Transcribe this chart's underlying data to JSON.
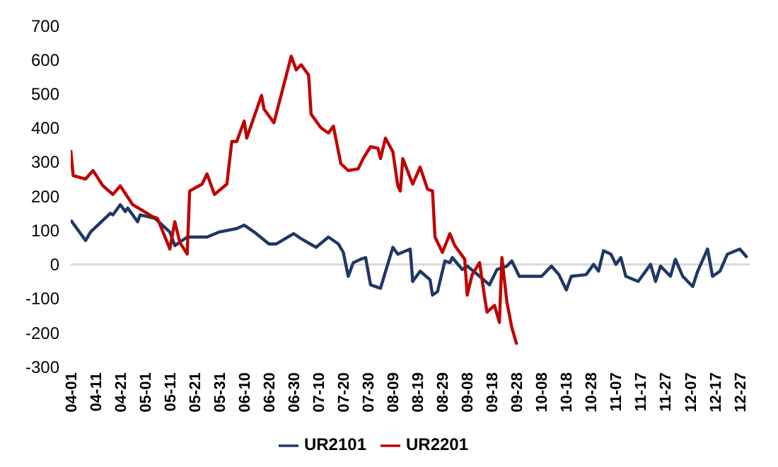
{
  "chart_data": {
    "type": "line",
    "legend": "bottom",
    "grid": false,
    "marker": "none",
    "line_style": "solid",
    "xlim": [
      "--04-01",
      "--12-31"
    ],
    "xticks": [
      {
        "value": "--04-01",
        "label": "04-01"
      },
      {
        "value": "--04-11",
        "label": "04-11"
      },
      {
        "value": "--04-21",
        "label": "04-21"
      },
      {
        "value": "--05-01",
        "label": "05-01"
      },
      {
        "value": "--05-11",
        "label": "05-11"
      },
      {
        "value": "--05-21",
        "label": "05-21"
      },
      {
        "value": "--05-31",
        "label": "05-31"
      },
      {
        "value": "--06-10",
        "label": "06-10"
      },
      {
        "value": "--06-20",
        "label": "06-20"
      },
      {
        "value": "--06-30",
        "label": "06-30"
      },
      {
        "value": "--07-10",
        "label": "07-10"
      },
      {
        "value": "--07-20",
        "label": "07-20"
      },
      {
        "value": "--07-30",
        "label": "07-30"
      },
      {
        "value": "--08-09",
        "label": "08-09"
      },
      {
        "value": "--08-19",
        "label": "08-19"
      },
      {
        "value": "--08-29",
        "label": "08-29"
      },
      {
        "value": "--09-08",
        "label": "09-08"
      },
      {
        "value": "--09-18",
        "label": "09-18"
      },
      {
        "value": "--09-28",
        "label": "09-28"
      },
      {
        "value": "--10-08",
        "label": "10-08"
      },
      {
        "value": "--10-18",
        "label": "10-18"
      },
      {
        "value": "--10-28",
        "label": "10-28"
      },
      {
        "value": "--11-07",
        "label": "11-07"
      },
      {
        "value": "--11-17",
        "label": "11-17"
      },
      {
        "value": "--11-27",
        "label": "11-27"
      },
      {
        "value": "--12-07",
        "label": "12-07"
      },
      {
        "value": "--12-17",
        "label": "12-17"
      },
      {
        "value": "--12-27",
        "label": "12-27"
      }
    ],
    "ylim": [
      -300,
      700
    ],
    "yticks": [
      -300,
      -200,
      -100,
      0,
      100,
      200,
      300,
      400,
      500,
      600,
      700
    ],
    "ref_lines": [
      {
        "axis": "y",
        "value": 0,
        "color": "#d9d9d9"
      }
    ],
    "series": [
      {
        "name": "UR2101",
        "color": "#1f3864",
        "x": [
          "--04-01",
          "--04-07",
          "--04-09",
          "--04-17",
          "--04-18",
          "--04-21",
          "--04-23",
          "--04-24",
          "--04-28",
          "--04-29",
          "--05-05",
          "--05-11",
          "--05-13",
          "--05-18",
          "--05-26",
          "--05-31",
          "--06-07",
          "--06-10",
          "--06-14",
          "--06-20",
          "--06-23",
          "--06-30",
          "--07-03",
          "--07-09",
          "--07-14",
          "--07-18",
          "--07-20",
          "--07-22",
          "--07-24",
          "--07-27",
          "--07-29",
          "--07-31",
          "--08-04",
          "--08-09",
          "--08-11",
          "--08-16",
          "--08-17",
          "--08-20",
          "--08-24",
          "--08-25",
          "--08-27",
          "--08-30",
          "--09-01",
          "--09-02",
          "--09-06",
          "--09-08",
          "--09-13",
          "--09-17",
          "--09-20",
          "--09-24",
          "--09-26",
          "--09-29",
          "--10-08",
          "--10-12",
          "--10-15",
          "--10-18",
          "--10-20",
          "--10-26",
          "--10-29",
          "--10-31",
          "--11-02",
          "--11-05",
          "--11-07",
          "--11-09",
          "--11-11",
          "--11-16",
          "--11-21",
          "--11-23",
          "--11-25",
          "--11-29",
          "--12-01",
          "--12-04",
          "--12-08",
          "--12-10",
          "--12-14",
          "--12-16",
          "--12-19",
          "--12-22",
          "--12-27",
          "--12-30"
        ],
        "values": [
          130,
          70,
          95,
          150,
          145,
          175,
          155,
          165,
          125,
          145,
          135,
          95,
          55,
          80,
          80,
          95,
          105,
          115,
          95,
          60,
          60,
          90,
          75,
          50,
          80,
          60,
          35,
          -35,
          5,
          15,
          20,
          -60,
          -70,
          50,
          30,
          45,
          -50,
          -20,
          -45,
          -90,
          -80,
          10,
          5,
          20,
          -15,
          -5,
          -35,
          -60,
          -15,
          -5,
          10,
          -35,
          -35,
          -5,
          -30,
          -75,
          -35,
          -30,
          0,
          -20,
          40,
          30,
          0,
          20,
          -35,
          -50,
          0,
          -50,
          -5,
          -35,
          15,
          -35,
          -65,
          -20,
          45,
          -35,
          -20,
          30,
          45,
          20
        ]
      },
      {
        "name": "UR2201",
        "color": "#c00000",
        "x": [
          "--04-01",
          "--04-02",
          "--04-07",
          "--04-10",
          "--04-14",
          "--04-18",
          "--04-21",
          "--04-26",
          "--05-04",
          "--05-06",
          "--05-11",
          "--05-13",
          "--05-15",
          "--05-18",
          "--05-19",
          "--05-24",
          "--05-26",
          "--05-29",
          "--06-03",
          "--06-05",
          "--06-07",
          "--06-10",
          "--06-11",
          "--06-17",
          "--06-18",
          "--06-22",
          "--06-29",
          "--07-01",
          "--07-03",
          "--07-06",
          "--07-07",
          "--07-11",
          "--07-14",
          "--07-16",
          "--07-19",
          "--07-22",
          "--07-26",
          "--07-28",
          "--07-31",
          "--08-03",
          "--08-04",
          "--08-06",
          "--08-09",
          "--08-11",
          "--08-12",
          "--08-13",
          "--08-17",
          "--08-20",
          "--08-23",
          "--08-25",
          "--08-26",
          "--08-29",
          "--09-01",
          "--09-03",
          "--09-07",
          "--09-08",
          "--09-10",
          "--09-13",
          "--09-15",
          "--09-16",
          "--09-19",
          "--09-21",
          "--09-22",
          "--09-24",
          "--09-26",
          "--09-28"
        ],
        "values": [
          335,
          260,
          250,
          275,
          230,
          205,
          230,
          175,
          140,
          135,
          45,
          125,
          65,
          30,
          215,
          235,
          265,
          205,
          235,
          360,
          360,
          420,
          370,
          495,
          455,
          415,
          610,
          570,
          585,
          555,
          440,
          400,
          385,
          405,
          295,
          275,
          280,
          310,
          345,
          340,
          310,
          370,
          330,
          230,
          215,
          310,
          235,
          285,
          220,
          215,
          80,
          35,
          90,
          55,
          15,
          -90,
          -30,
          5,
          -95,
          -140,
          -120,
          -170,
          20,
          -110,
          -185,
          -235
        ]
      }
    ]
  }
}
